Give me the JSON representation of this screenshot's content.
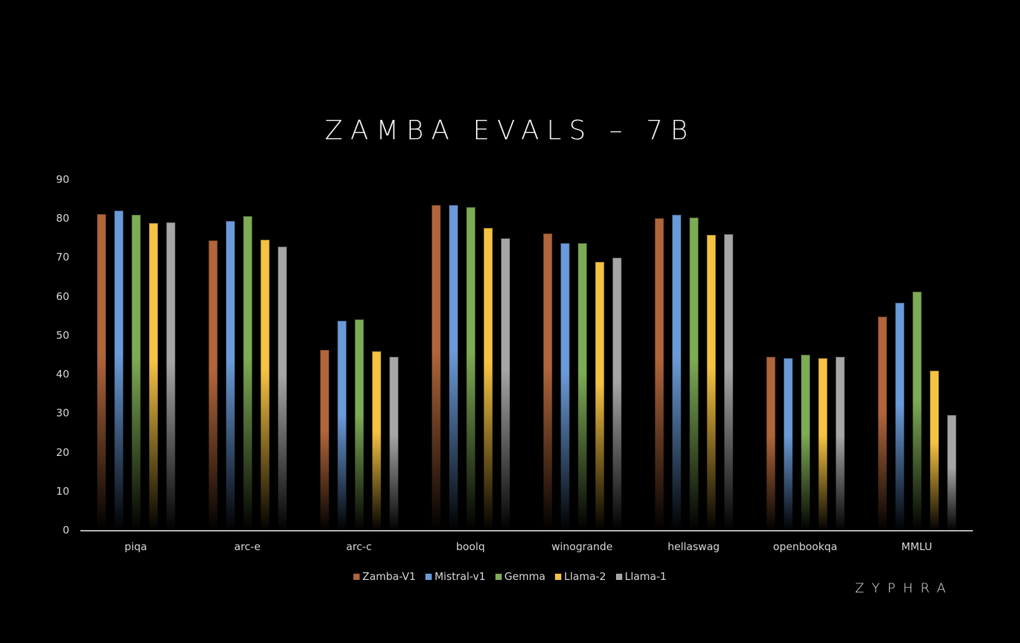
{
  "chart_data": {
    "type": "bar",
    "title": "ZAMBA EVALS – 7B",
    "xlabel": "",
    "ylabel": "",
    "ylim": [
      0,
      90
    ],
    "yticks": [
      0,
      10,
      20,
      30,
      40,
      50,
      60,
      70,
      80,
      90
    ],
    "grid": false,
    "legend_position": "bottom",
    "categories": [
      "piqa",
      "arc-e",
      "arc-c",
      "boolq",
      "winogrande",
      "hellaswag",
      "openbookqa",
      "MMLU"
    ],
    "series": [
      {
        "name": "Zamba-V1",
        "color": "#b0653a",
        "values": [
          81.3,
          74.5,
          46.4,
          83.6,
          76.3,
          80.2,
          44.6,
          55.0
        ]
      },
      {
        "name": "Mistral-v1",
        "color": "#6a9bd8",
        "values": [
          82.2,
          79.5,
          53.9,
          83.6,
          73.8,
          81.1,
          44.2,
          58.5
        ]
      },
      {
        "name": "Gemma",
        "color": "#7eab55",
        "values": [
          81.1,
          80.8,
          54.3,
          83.1,
          73.8,
          80.4,
          45.1,
          61.4
        ]
      },
      {
        "name": "Llama-2",
        "color": "#f5c242",
        "values": [
          79.0,
          74.7,
          46.1,
          77.7,
          69.0,
          76.0,
          44.2,
          41.1
        ]
      },
      {
        "name": "Llama-1",
        "color": "#a6a6a6",
        "values": [
          79.1,
          72.9,
          44.6,
          75.1,
          70.1,
          76.1,
          44.6,
          29.7
        ]
      }
    ]
  },
  "branding": {
    "logo_text": "ZYPHRA"
  }
}
